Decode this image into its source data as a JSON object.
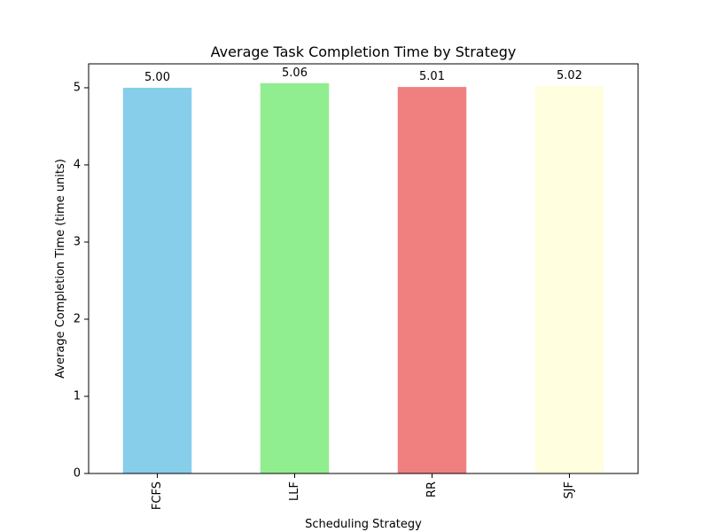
{
  "chart_data": {
    "type": "bar",
    "title": "Average Task Completion Time by Strategy",
    "xlabel": "Scheduling Strategy",
    "ylabel": "Average Completion Time (time units)",
    "categories": [
      "FCFS",
      "LLF",
      "RR",
      "SJF"
    ],
    "values": [
      5.0,
      5.06,
      5.01,
      5.02
    ],
    "data_labels": [
      "5.00",
      "5.06",
      "5.01",
      "5.02"
    ],
    "colors": [
      "#87ceeb",
      "#90ee90",
      "#f08080",
      "#ffffe0"
    ],
    "ylim": [
      0,
      5.31
    ],
    "yticks": [
      0,
      1,
      2,
      3,
      4,
      5
    ],
    "ytick_labels": [
      "0",
      "1",
      "2",
      "3",
      "4",
      "5"
    ],
    "grid": false,
    "legend": "none"
  }
}
